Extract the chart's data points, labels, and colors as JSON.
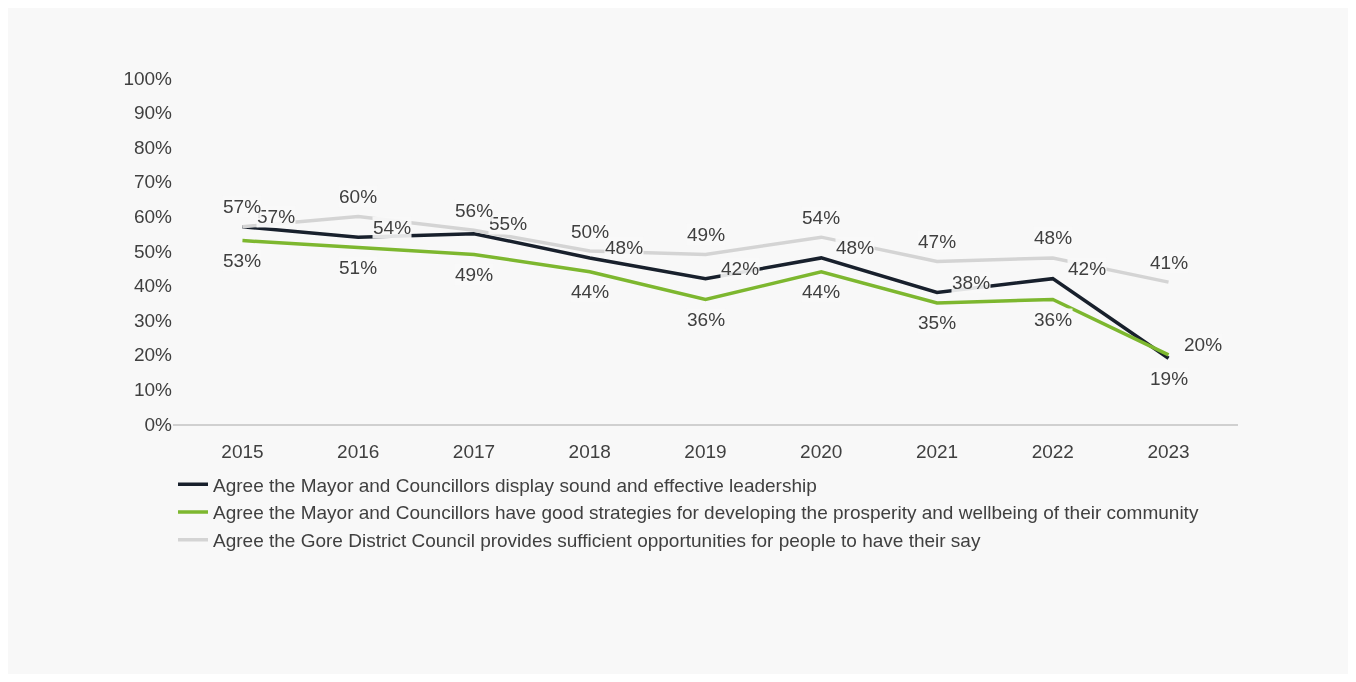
{
  "chart_data": {
    "type": "line",
    "categories": [
      "2015",
      "2016",
      "2017",
      "2018",
      "2019",
      "2020",
      "2021",
      "2022",
      "2023"
    ],
    "series": [
      {
        "name": "Agree the Mayor and Councillors display sound and effective leadership",
        "color": "#18202c",
        "values": [
          57,
          54,
          55,
          48,
          42,
          48,
          38,
          42,
          19
        ],
        "value_labels": [
          "57%",
          "54%",
          "55%",
          "48%",
          "42%",
          "48%",
          "38%",
          "42%",
          "19%"
        ]
      },
      {
        "name": "Agree the Mayor and Councillors have good strategies for developing the prosperity and wellbeing of their community",
        "color": "#7db72f",
        "values": [
          53,
          51,
          49,
          44,
          36,
          44,
          35,
          36,
          20
        ],
        "value_labels": [
          "53%",
          "51%",
          "49%",
          "44%",
          "36%",
          "44%",
          "35%",
          "36%",
          "20%"
        ]
      },
      {
        "name": "Agree the Gore District Council provides sufficient opportunities for people to have their say",
        "color": "#d4d4d4",
        "values": [
          57,
          60,
          56,
          50,
          49,
          54,
          47,
          48,
          41
        ],
        "value_labels": [
          "57%",
          "60%",
          "56%",
          "50%",
          "49%",
          "54%",
          "47%",
          "48%",
          "41%"
        ]
      }
    ],
    "ylim": [
      0,
      100
    ],
    "yticks": [
      {
        "value": 0,
        "label": "0%"
      },
      {
        "value": 10,
        "label": "10%"
      },
      {
        "value": 20,
        "label": "20%"
      },
      {
        "value": 30,
        "label": "30%"
      },
      {
        "value": 40,
        "label": "40%"
      },
      {
        "value": 50,
        "label": "50%"
      },
      {
        "value": 60,
        "label": "60%"
      },
      {
        "value": 70,
        "label": "70%"
      },
      {
        "value": 80,
        "label": "80%"
      },
      {
        "value": 90,
        "label": "90%"
      },
      {
        "value": 100,
        "label": "100%"
      }
    ],
    "grid": false,
    "legend": "bottom",
    "marker": "none",
    "line_style": "solid"
  }
}
